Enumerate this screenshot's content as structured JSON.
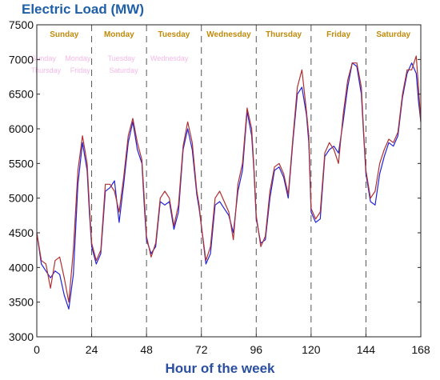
{
  "colors": {
    "title": "#1f5fa8",
    "xlabel": "#2a4fa0",
    "day_label": "#c08a0a",
    "ghost_label": "#f08ad8",
    "series_blue": "#2323d8",
    "series_red": "#b03030"
  },
  "chart_data": {
    "type": "line",
    "title": "Electric Load (MW)",
    "xlabel": "Hour of the week",
    "ylabel": "",
    "xlim": [
      0,
      168
    ],
    "ylim": [
      3000,
      7500
    ],
    "xticks": [
      "0",
      "24",
      "48",
      "72",
      "96",
      "120",
      "144",
      "168"
    ],
    "yticks": [
      "3000",
      "3500",
      "4000",
      "4500",
      "5000",
      "5500",
      "6000",
      "6500",
      "7000",
      "7500"
    ],
    "day_boundaries": [
      24,
      48,
      72,
      96,
      120,
      144,
      168
    ],
    "days": [
      "Sunday",
      "Monday",
      "Tuesday",
      "Wednesday",
      "Thursday",
      "Friday",
      "Saturday"
    ],
    "ghost_labels_row1": [
      "Sunday",
      "Monday",
      "Tuesday",
      "Wednesday"
    ],
    "ghost_labels_row2": [
      "Thursday",
      "Friday",
      "Saturday"
    ],
    "grid": false,
    "series": [
      {
        "color": "#2323d8",
        "x": [
          0,
          2,
          4,
          6,
          8,
          10,
          12,
          14,
          16,
          18,
          20,
          22,
          23,
          24,
          26,
          28,
          30,
          32,
          34,
          36,
          38,
          40,
          42,
          44,
          46,
          47,
          48,
          50,
          52,
          54,
          56,
          58,
          60,
          62,
          64,
          66,
          68,
          70,
          71,
          72,
          74,
          76,
          78,
          80,
          82,
          84,
          86,
          88,
          90,
          92,
          94,
          95,
          96,
          98,
          100,
          102,
          104,
          106,
          108,
          110,
          112,
          114,
          116,
          118,
          119,
          120,
          122,
          124,
          126,
          128,
          130,
          132,
          134,
          136,
          138,
          140,
          142,
          143,
          144,
          146,
          148,
          150,
          152,
          154,
          156,
          158,
          160,
          162,
          164,
          166,
          167,
          168
        ],
        "y": [
          4500,
          4050,
          3950,
          3850,
          3950,
          3900,
          3600,
          3400,
          3900,
          5200,
          5800,
          5400,
          4800,
          4300,
          4050,
          4200,
          5100,
          5150,
          5250,
          4650,
          5200,
          5800,
          6100,
          5700,
          5500,
          4900,
          4400,
          4200,
          4300,
          4950,
          4900,
          4950,
          4550,
          4800,
          5700,
          6000,
          5700,
          5050,
          4850,
          4600,
          4050,
          4200,
          4900,
          4950,
          4850,
          4750,
          4500,
          5100,
          5400,
          6250,
          5900,
          5400,
          4700,
          4350,
          4400,
          5000,
          5400,
          5450,
          5300,
          5000,
          5800,
          6500,
          6600,
          6200,
          5800,
          4800,
          4650,
          4700,
          5600,
          5700,
          5750,
          5650,
          6100,
          6600,
          6950,
          6900,
          6500,
          5900,
          5350,
          4950,
          4900,
          5350,
          5600,
          5800,
          5750,
          5900,
          6450,
          6800,
          6950,
          6800,
          6400,
          6100
        ]
      },
      {
        "color": "#b03030",
        "x": [
          0,
          2,
          4,
          6,
          8,
          10,
          12,
          14,
          16,
          18,
          20,
          22,
          23,
          24,
          26,
          28,
          30,
          32,
          34,
          36,
          38,
          40,
          42,
          44,
          46,
          47,
          48,
          50,
          52,
          54,
          56,
          58,
          60,
          62,
          64,
          66,
          68,
          70,
          71,
          72,
          74,
          76,
          78,
          80,
          82,
          84,
          86,
          88,
          90,
          92,
          94,
          95,
          96,
          98,
          100,
          102,
          104,
          106,
          108,
          110,
          112,
          114,
          116,
          118,
          119,
          120,
          122,
          124,
          126,
          128,
          130,
          132,
          134,
          136,
          138,
          140,
          142,
          143,
          144,
          146,
          148,
          150,
          152,
          154,
          156,
          158,
          160,
          162,
          164,
          166,
          167,
          168
        ],
        "y": [
          4500,
          4100,
          4050,
          3700,
          4100,
          4150,
          3850,
          3500,
          4250,
          5400,
          5900,
          5500,
          4900,
          4350,
          4100,
          4250,
          5200,
          5200,
          5100,
          4800,
          5300,
          5900,
          6150,
          5800,
          5550,
          5000,
          4450,
          4150,
          4350,
          5000,
          5100,
          5000,
          4600,
          4900,
          5750,
          6100,
          5800,
          5100,
          4900,
          4600,
          4100,
          4300,
          5000,
          5100,
          4950,
          4800,
          4400,
          5200,
          5500,
          6300,
          6000,
          5450,
          4750,
          4300,
          4450,
          5100,
          5450,
          5500,
          5350,
          5050,
          5850,
          6600,
          6850,
          6250,
          5900,
          4850,
          4700,
          4800,
          5650,
          5800,
          5700,
          5500,
          6200,
          6700,
          6950,
          6950,
          6600,
          5950,
          5400,
          5000,
          5100,
          5500,
          5700,
          5850,
          5800,
          5950,
          6500,
          6850,
          6850,
          7050,
          6600,
          6100
        ]
      }
    ]
  }
}
